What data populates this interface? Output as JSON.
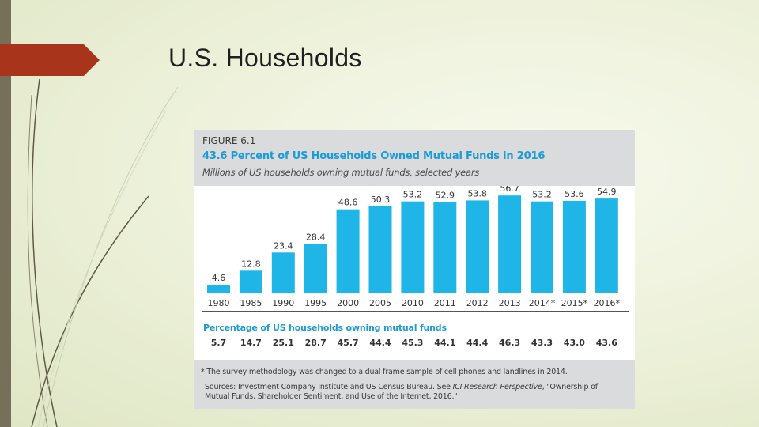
{
  "slide": {
    "title": "U.S. Households"
  },
  "figure": {
    "label": "FIGURE 6.1",
    "title": "43.6 Percent of US Households Owned Mutual Funds in 2016",
    "subtitle": "Millions of US households owning mutual funds, selected years",
    "percentage_label": "Percentage of US households owning mutual funds",
    "percentages": [
      "5.7",
      "14.7",
      "25.1",
      "28.7",
      "45.7",
      "44.4",
      "45.3",
      "44.1",
      "44.4",
      "46.3",
      "43.3",
      "43.0",
      "43.6"
    ],
    "note": "* The survey methodology was changed to a dual frame sample of cell phones and landlines in 2014.",
    "sources_prefix": "Sources: Investment Company Institute and US Census Bureau. See ",
    "sources_italic": "ICI Research Perspective",
    "sources_suffix": ", \"Ownership of Mutual Funds, Shareholder Sentiment, and Use of the Internet, 2016.\""
  },
  "colors": {
    "bar": "#1fb5e6",
    "title": "#1d9bd7",
    "panel": "#d9dbdd",
    "accent_tab": "#a8341c",
    "left_bar": "#76705a"
  },
  "chart_data": {
    "type": "bar",
    "title": "43.6 Percent of US Households Owned Mutual Funds in 2016",
    "ylabel": "",
    "xlabel": "",
    "categories": [
      "1980",
      "1985",
      "1990",
      "1995",
      "2000",
      "2005",
      "2010",
      "2011",
      "2012",
      "2013",
      "2014*",
      "2015*",
      "2016*"
    ],
    "series": [
      {
        "values": [
          4.6,
          12.8,
          23.4,
          28.4,
          48.6,
          50.3,
          53.2,
          52.9,
          53.8,
          56.7,
          53.2,
          53.6,
          54.9
        ]
      }
    ],
    "value_labels": [
      "4.6",
      "12.8",
      "23.4",
      "28.4",
      "48.6",
      "50.3",
      "53.2",
      "52.9",
      "53.8",
      "56.7",
      "53.2",
      "53.6",
      "54.9"
    ],
    "ylim": [
      0,
      60
    ],
    "grid": false,
    "legend": "none"
  }
}
